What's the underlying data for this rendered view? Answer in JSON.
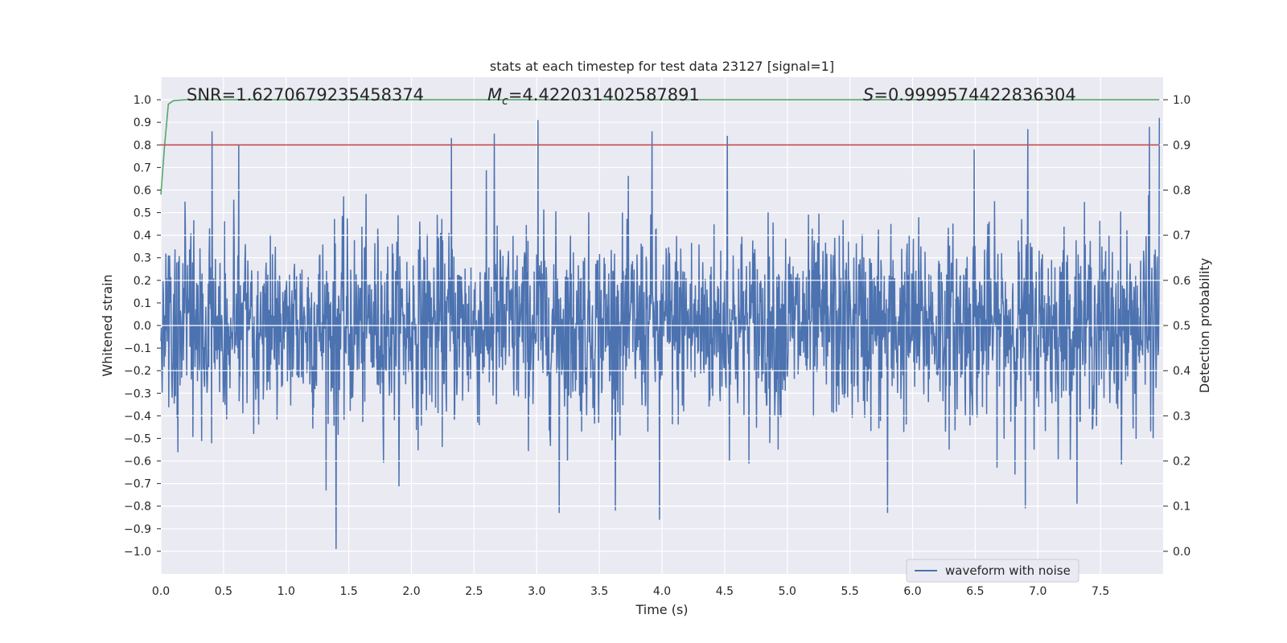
{
  "chart_data": {
    "type": "line",
    "title": "stats at each timestep for test data 23127 [signal=1]",
    "xlabel": "Time (s)",
    "ylabel": "Whitened strain",
    "y2label": "Detection probability",
    "xlim": [
      0.0,
      8.0
    ],
    "ylim": [
      -1.1,
      1.1
    ],
    "y2lim": [
      -0.05,
      1.05
    ],
    "xticks": [
      "0.0",
      "0.5",
      "1.0",
      "1.5",
      "2.0",
      "2.5",
      "3.0",
      "3.5",
      "4.0",
      "4.5",
      "5.0",
      "5.5",
      "6.0",
      "6.5",
      "7.0",
      "7.5"
    ],
    "yticks": [
      "1.0",
      "0.9",
      "0.8",
      "0.7",
      "0.6",
      "0.5",
      "0.4",
      "0.3",
      "0.2",
      "0.1",
      "0.0",
      "−0.1",
      "−0.2",
      "−0.3",
      "−0.4",
      "−0.5",
      "−0.6",
      "−0.7",
      "−0.8",
      "−0.9",
      "−1.0"
    ],
    "y2ticks": [
      "1.0",
      "0.9",
      "0.8",
      "0.7",
      "0.6",
      "0.5",
      "0.4",
      "0.3",
      "0.2",
      "0.1",
      "0.0"
    ],
    "annotations": {
      "snr": "SNR=1.6270679235458374",
      "mc_symbol": "M",
      "mc_subscript": "c",
      "mc_value": "=4.422031402587891",
      "s_symbol": "S",
      "s_value": "=0.9999574422836304"
    },
    "legend": {
      "label": "waveform with noise",
      "placement": "lower-right"
    },
    "colors": {
      "waveform": "#4c72b0",
      "probability": "#55a868",
      "threshold": "#c44e52",
      "background": "#eaeaf2"
    },
    "series": [
      {
        "name": "waveform with noise",
        "axis": "left",
        "style": "noise",
        "rms": 0.21,
        "peak_max": 0.93,
        "peak_min": -0.99,
        "notable_peaks": [
          {
            "x": 0.41,
            "y": 0.86
          },
          {
            "x": 0.62,
            "y": 0.8
          },
          {
            "x": 2.32,
            "y": 0.83
          },
          {
            "x": 2.66,
            "y": 0.85
          },
          {
            "x": 3.01,
            "y": 0.91
          },
          {
            "x": 3.92,
            "y": 0.86
          },
          {
            "x": 4.52,
            "y": 0.84
          },
          {
            "x": 6.49,
            "y": 0.78
          },
          {
            "x": 6.92,
            "y": 0.87
          },
          {
            "x": 7.89,
            "y": 0.88
          },
          {
            "x": 7.97,
            "y": 0.92
          }
        ],
        "notable_troughs": [
          {
            "x": 1.4,
            "y": -0.99
          },
          {
            "x": 3.98,
            "y": -0.86
          },
          {
            "x": 5.8,
            "y": -0.83
          },
          {
            "x": 3.18,
            "y": -0.83
          },
          {
            "x": 6.9,
            "y": -0.81
          }
        ]
      },
      {
        "name": "detection probability",
        "axis": "right",
        "x": [
          0.0,
          0.03,
          0.06,
          0.1,
          0.2,
          1.0,
          3.0,
          5.0,
          7.0,
          7.97
        ],
        "values": [
          0.79,
          0.9,
          0.99,
          0.998,
          1.0,
          1.0,
          1.0,
          1.0,
          1.0,
          1.0
        ]
      },
      {
        "name": "threshold",
        "axis": "right",
        "x": [
          0.0,
          7.97
        ],
        "values": [
          0.9,
          0.9
        ]
      }
    ]
  }
}
